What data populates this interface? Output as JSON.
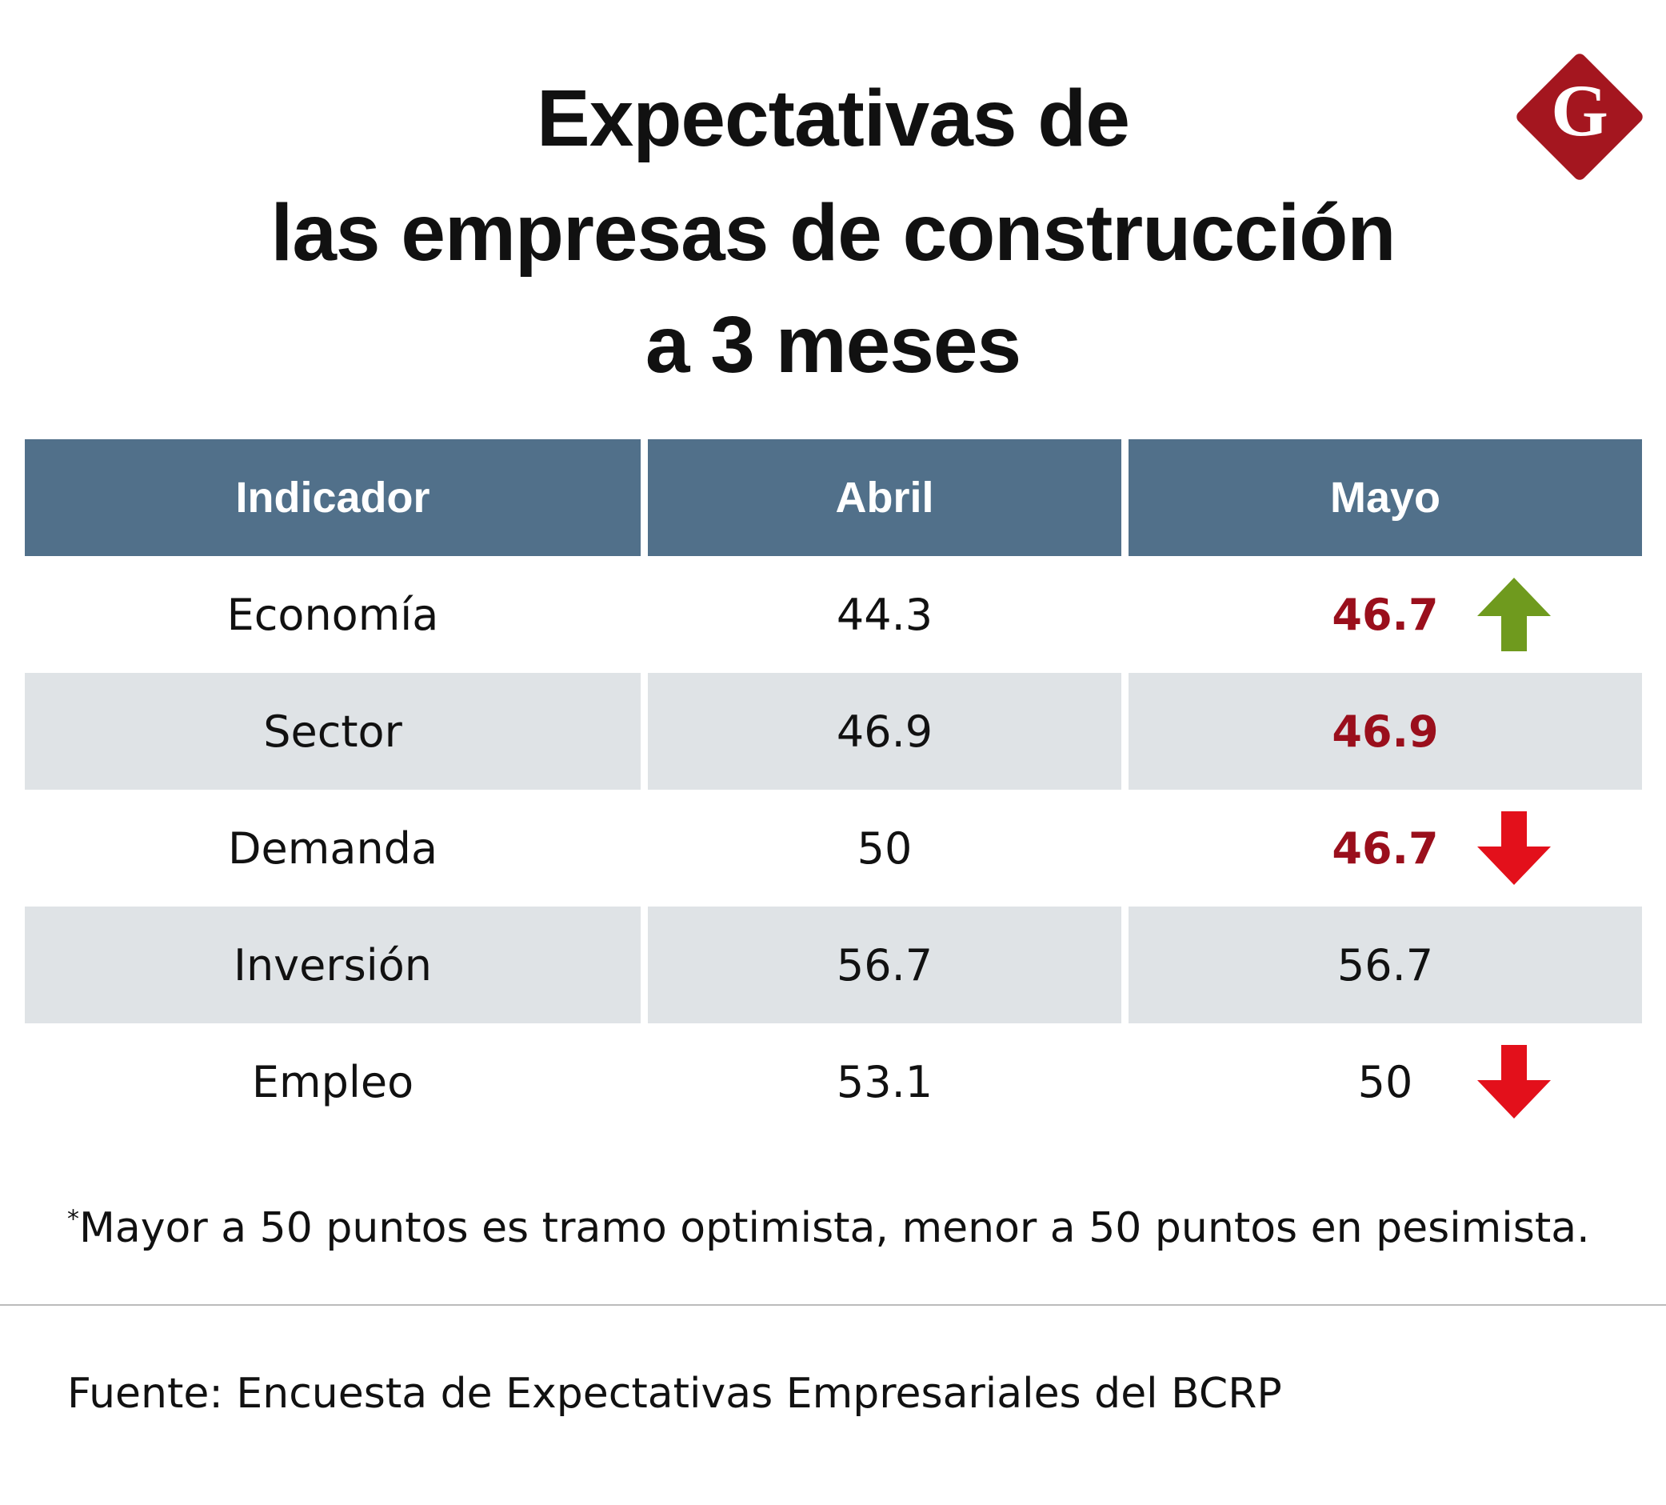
{
  "title": [
    "Expectativas de",
    "las empresas de construcción",
    "a 3 meses"
  ],
  "logo": "G",
  "table": {
    "header": [
      "Indicador",
      "Abril",
      "Mayo"
    ],
    "rows": [
      {
        "indicator": "Economía",
        "april": 44.3,
        "may": 46.7,
        "may_highlight": true,
        "trend": "up"
      },
      {
        "indicator": "Sector",
        "april": 46.9,
        "may": 46.9,
        "may_highlight": true,
        "trend": null
      },
      {
        "indicator": "Demanda",
        "april": 50,
        "may": 46.7,
        "may_highlight": true,
        "trend": "down"
      },
      {
        "indicator": "Inversión",
        "april": 56.7,
        "may": 56.7,
        "may_highlight": false,
        "trend": null
      },
      {
        "indicator": "Empleo",
        "april": 53.1,
        "may": 50,
        "may_highlight": false,
        "trend": "down"
      }
    ]
  },
  "footnote": {
    "marker": "*",
    "text": "Mayor a 50 puntos es tramo optimista, menor a 50 puntos en pesimista."
  },
  "source": "Fuente: Encuesta de Expectativas Empresariales del BCRP"
}
